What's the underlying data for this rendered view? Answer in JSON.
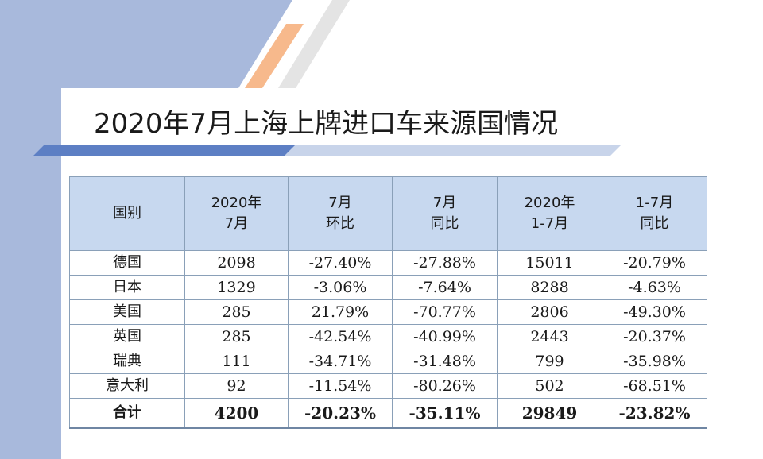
{
  "title": "2020年7月上海上牌进口车来源国情况",
  "colors": {
    "header_bg": "#c7d8ef",
    "accent_orange": "#f7b98c",
    "band_blue": "#a8b9dc",
    "stripe_gray": "#e6e6e6",
    "border": "#8aa0b8"
  },
  "table": {
    "headers": [
      {
        "line1": "国别",
        "line2": ""
      },
      {
        "line1": "2020年",
        "line2": "7月"
      },
      {
        "line1": "7月",
        "line2": "环比"
      },
      {
        "line1": "7月",
        "line2": "同比"
      },
      {
        "line1": "2020年",
        "line2": "1-7月"
      },
      {
        "line1": "1-7月",
        "line2": "同比"
      }
    ],
    "rows": [
      [
        "德国",
        "2098",
        "-27.40%",
        "-27.88%",
        "15011",
        "-20.79%"
      ],
      [
        "日本",
        "1329",
        "-3.06%",
        "-7.64%",
        "8288",
        "-4.63%"
      ],
      [
        "美国",
        "285",
        "21.79%",
        "-70.77%",
        "2806",
        "-49.30%"
      ],
      [
        "英国",
        "285",
        "-42.54%",
        "-40.99%",
        "2443",
        "-20.37%"
      ],
      [
        "瑞典",
        "111",
        "-34.71%",
        "-31.48%",
        "799",
        "-35.98%"
      ],
      [
        "意大利",
        "92",
        "-11.54%",
        "-80.26%",
        "502",
        "-68.51%"
      ]
    ],
    "total": [
      "合计",
      "4200",
      "-20.23%",
      "-35.11%",
      "29849",
      "-23.82%"
    ]
  }
}
